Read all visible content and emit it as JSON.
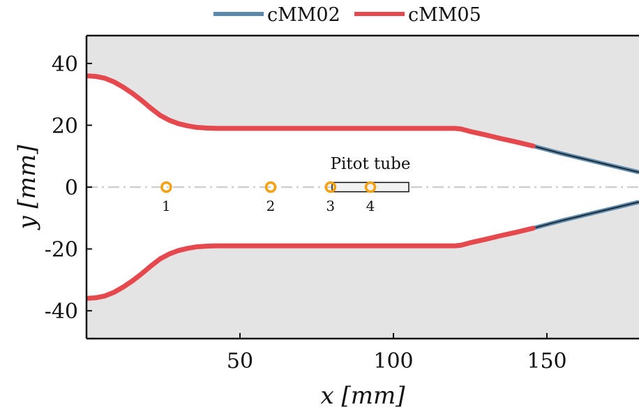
{
  "chart_data": {
    "type": "line",
    "title": "",
    "xlabel": "x",
    "xlabel_unit": "[mm]",
    "ylabel": "y",
    "ylabel_unit": "[mm]",
    "xlim": [
      0,
      180
    ],
    "ylim": [
      -49,
      49
    ],
    "x_ticks": [
      50,
      100,
      150
    ],
    "x_tick_labels": [
      "50",
      "100",
      "150"
    ],
    "y_ticks": [
      40,
      20,
      0,
      -20,
      -40
    ],
    "y_tick_labels": [
      "40",
      "20",
      "0",
      "-20",
      "-40"
    ],
    "grid": false,
    "legend_position": "top-center",
    "background_color": "#e4e4e4",
    "channel_color": "#ffffff",
    "centerline": {
      "y": 0,
      "style": "dash-dot",
      "color": "#cfcfcf"
    },
    "series": [
      {
        "name": "cMM02",
        "color": "#5b88ad",
        "upper": {
          "x": [
            145.5,
            150,
            155,
            160,
            165,
            170,
            175,
            180
          ],
          "y": [
            13.3,
            12.1,
            10.8,
            9.6,
            8.4,
            7.2,
            6.0,
            4.8
          ]
        }
      },
      {
        "name": "cMM05",
        "color": "#e5484d",
        "upper": {
          "x": [
            0,
            3,
            6,
            9,
            12,
            15,
            18,
            21,
            24,
            27,
            30,
            33,
            36,
            39,
            42,
            45,
            60,
            80,
            100,
            115,
            120,
            122,
            125,
            130,
            135,
            140,
            145.5
          ],
          "y": [
            36.0,
            35.8,
            35.2,
            34.0,
            32.3,
            30.3,
            28.0,
            25.5,
            23.2,
            21.6,
            20.5,
            19.8,
            19.3,
            19.1,
            19.0,
            19.0,
            19.0,
            19.0,
            19.0,
            19.0,
            19.0,
            18.8,
            18.0,
            16.9,
            15.7,
            14.6,
            13.3
          ]
        }
      }
    ],
    "symmetric_about_x_axis": true,
    "extension_line_color": "#111111",
    "probes": [
      {
        "label": "1",
        "x": 26,
        "y": 0
      },
      {
        "label": "2",
        "x": 60,
        "y": 0
      },
      {
        "label": "3",
        "x": 79.5,
        "y": 0
      },
      {
        "label": "4",
        "x": 92.5,
        "y": 0
      }
    ],
    "probe_color": "#f5a011",
    "pitot_tube": {
      "label": "Pitot tube",
      "x_start": 80,
      "x_end": 105,
      "y_half": 1.5
    }
  }
}
